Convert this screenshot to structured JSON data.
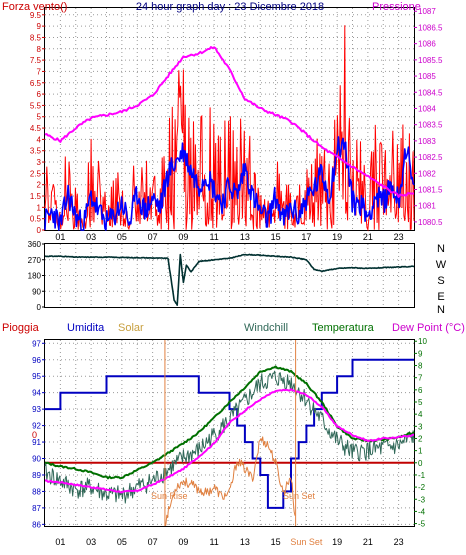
{
  "page": {
    "title": "24 hour graph day : 23 Dicembre 2018"
  },
  "colors": {
    "wind_gust": "#ff0000",
    "wind_avg": "#0000ff",
    "pressure": "#ff00ff",
    "direction": "#003030",
    "humidity": "#0000c0",
    "windchill": "#306858",
    "temperature": "#007000",
    "dewpoint": "#ff00ff",
    "rain": "#c00000",
    "solar": "#e08040",
    "axis_left": "#cc0000",
    "axis_right": "#cc00cc",
    "grid": "#9a9a9a"
  },
  "chart_data": [
    {
      "type": "line",
      "name": "wind-pressure",
      "left_label": "Forza vento()",
      "right_label": "Pressione",
      "y_ticks": [
        "0",
        "0.5",
        "1",
        "1.5",
        "2",
        "2.5",
        "3",
        "3.5",
        "4",
        "4.5",
        "5",
        "5.5",
        "6",
        "6.5",
        "7",
        "7.5",
        "8",
        "8.5",
        "9",
        "9.5"
      ],
      "y2_ticks": [
        "1080.5",
        "1081",
        "1081.5",
        "1082",
        "1082.5",
        "1083",
        "1083.5",
        "1084",
        "1084.5",
        "1085",
        "1085.5",
        "1086",
        "1086.5",
        "1087"
      ],
      "ylim": [
        0,
        9.8
      ],
      "y2lim": [
        1080.25,
        1087.1
      ],
      "x_ticks": [
        "01",
        "03",
        "05",
        "07",
        "09",
        "11",
        "13",
        "15",
        "17",
        "19",
        "21",
        "23"
      ],
      "series": [
        {
          "name": "gust",
          "x": [
            0,
            0.5,
            1,
            1.5,
            2,
            2.5,
            3,
            3.5,
            4,
            4.5,
            5,
            5.5,
            6,
            6.5,
            7,
            7.5,
            8,
            8.5,
            9,
            9.5,
            10,
            10.5,
            11,
            11.5,
            12,
            12.5,
            13,
            13.5,
            14,
            14.5,
            15,
            15.5,
            16,
            16.5,
            17,
            17.5,
            18,
            18.5,
            19,
            19.5,
            20,
            20.5,
            21,
            21.5,
            22,
            22.5,
            23,
            23.5,
            24
          ],
          "values": [
            3.6,
            2.4,
            1.2,
            4.8,
            2.0,
            1.0,
            5.2,
            3.0,
            1.5,
            2.5,
            3.6,
            1.2,
            4.5,
            3.0,
            4.0,
            2.5,
            5.5,
            7.0,
            8.0,
            6.0,
            5.0,
            6.5,
            5.5,
            4.5,
            6.0,
            5.0,
            5.5,
            3.5,
            2.5,
            1.8,
            4.0,
            1.5,
            3.0,
            2.0,
            4.0,
            5.0,
            5.5,
            3.0,
            6.5,
            9.3,
            4.0,
            4.5,
            2.5,
            5.0,
            3.5,
            5.5,
            4.0,
            5.5,
            3.5
          ]
        },
        {
          "name": "average",
          "x": [
            0,
            0.5,
            1,
            1.5,
            2,
            2.5,
            3,
            3.5,
            4,
            4.5,
            5,
            5.5,
            6,
            6.5,
            7,
            7.5,
            8,
            8.5,
            9,
            9.5,
            10,
            10.5,
            11,
            11.5,
            12,
            12.5,
            13,
            13.5,
            14,
            14.5,
            15,
            15.5,
            16,
            16.5,
            17,
            17.5,
            18,
            18.5,
            19,
            19.5,
            20,
            20.5,
            21,
            21.5,
            22,
            22.5,
            23,
            23.5,
            24
          ],
          "values": [
            0.4,
            0.8,
            0.2,
            1.6,
            0.6,
            0.2,
            1.5,
            0.8,
            0.3,
            0.6,
            1.2,
            0.3,
            1.6,
            0.8,
            1.4,
            1.0,
            2.5,
            3.0,
            3.5,
            2.6,
            2.0,
            2.5,
            1.8,
            1.2,
            2.0,
            1.5,
            2.8,
            1.5,
            0.8,
            0.4,
            1.5,
            0.4,
            1.0,
            0.6,
            1.4,
            1.8,
            2.5,
            1.5,
            3.6,
            3.8,
            1.2,
            1.2,
            0.6,
            1.5,
            1.2,
            2.0,
            1.3,
            3.8,
            1.5
          ]
        },
        {
          "name": "pressure",
          "x": [
            0,
            1,
            2,
            3,
            4,
            5,
            6,
            7,
            8,
            9,
            10,
            11,
            12,
            13,
            14,
            15,
            16,
            17,
            18,
            19,
            20,
            21,
            22,
            23,
            24
          ],
          "values": [
            1083.2,
            1083.0,
            1083.4,
            1083.7,
            1083.8,
            1083.9,
            1084.1,
            1084.4,
            1085.0,
            1085.6,
            1085.7,
            1085.9,
            1085.2,
            1084.3,
            1084.0,
            1083.8,
            1083.6,
            1083.2,
            1082.8,
            1082.5,
            1082.2,
            1081.9,
            1081.6,
            1081.3,
            1081.4
          ]
        }
      ]
    },
    {
      "type": "line",
      "name": "wind-direction",
      "y_ticks": [
        "0",
        "90",
        "180",
        "270",
        "360"
      ],
      "compass_labels": [
        "N",
        "W",
        "S",
        "E",
        "N"
      ],
      "ylim": [
        0,
        360
      ],
      "x": [
        0,
        1,
        2,
        3,
        4,
        5,
        6,
        7,
        8,
        8.4,
        8.6,
        8.8,
        9,
        9.2,
        9.5,
        10,
        11,
        12,
        13,
        14,
        15,
        16,
        17,
        17.5,
        18,
        19,
        20,
        21,
        22,
        23,
        24
      ],
      "values": [
        290,
        290,
        285,
        285,
        285,
        283,
        282,
        280,
        278,
        40,
        10,
        300,
        140,
        240,
        200,
        260,
        270,
        278,
        300,
        296,
        290,
        285,
        270,
        215,
        205,
        220,
        225,
        220,
        225,
        228,
        232
      ]
    },
    {
      "type": "line",
      "name": "temperature-humidity",
      "labels": {
        "pioggia": "Pioggia",
        "umidita": "Umidita",
        "solar": "Solar",
        "windchill": "Windchill",
        "temperatura": "Temperatura",
        "dewpoint": "Dew Point (°C)"
      },
      "y_ticks": [
        "86",
        "87",
        "88",
        "89",
        "90",
        "91",
        "92",
        "93",
        "94",
        "95",
        "96",
        "97"
      ],
      "y2_ticks": [
        "-5",
        "-4",
        "-3",
        "-2",
        "-1",
        "0",
        "1",
        "2",
        "3",
        "4",
        "5",
        "6",
        "7",
        "8",
        "9",
        "10"
      ],
      "ylim": [
        85.9,
        97.2
      ],
      "y2lim": [
        -5.2,
        10.1
      ],
      "rain_zero_label": "0",
      "x_ticks": [
        "01",
        "03",
        "05",
        "07",
        "09",
        "11",
        "13",
        "15",
        "Sun Set",
        "19",
        "21",
        "23"
      ],
      "annotations": {
        "sunrise": "Sun Rise",
        "sunset": "Sun Set"
      },
      "sunrise_hour": 7.8,
      "sunset_hour": 16.3,
      "series": [
        {
          "name": "humidity",
          "x": [
            0,
            0.5,
            1,
            1.5,
            2,
            2.5,
            3,
            3.5,
            4,
            4.5,
            5,
            5.5,
            6,
            6.5,
            7,
            7.5,
            8,
            8.5,
            9,
            9.5,
            10,
            10.5,
            11,
            11.5,
            12,
            12.5,
            13,
            13.5,
            14,
            14.5,
            15,
            15.5,
            16,
            16.5,
            17,
            17.5,
            18,
            18.5,
            19,
            19.5,
            20,
            20.5,
            21,
            21.5,
            22,
            22.5,
            23,
            23.5,
            24
          ],
          "values": [
            93,
            93,
            94,
            94,
            94,
            94,
            94,
            94,
            95,
            95,
            95,
            95,
            95,
            95,
            95,
            95,
            95,
            95,
            95,
            95,
            94,
            94,
            94,
            94,
            93,
            92,
            91,
            90,
            89,
            87,
            87,
            88,
            90,
            91,
            92,
            93,
            94,
            94,
            95,
            95,
            96,
            96,
            96,
            96,
            96,
            96,
            96,
            96,
            96
          ]
        },
        {
          "name": "temperature",
          "x": [
            0,
            1,
            2,
            3,
            4,
            5,
            6,
            7,
            8,
            9,
            10,
            11,
            12,
            13,
            14,
            15,
            16,
            17,
            18,
            19,
            20,
            21,
            22,
            23,
            24
          ],
          "values": [
            0.0,
            -0.3,
            -0.5,
            -0.8,
            -1.2,
            -1.2,
            -0.6,
            0.0,
            0.8,
            1.6,
            2.5,
            3.7,
            5.0,
            6.2,
            7.5,
            7.9,
            7.5,
            6.5,
            5.0,
            3.0,
            2.0,
            1.8,
            1.9,
            2.1,
            2.5
          ]
        },
        {
          "name": "dewpoint",
          "x": [
            0,
            1,
            2,
            3,
            4,
            5,
            6,
            7,
            8,
            9,
            10,
            11,
            12,
            13,
            14,
            15,
            16,
            17,
            18,
            19,
            20,
            21,
            22,
            23,
            24
          ],
          "values": [
            -1.5,
            -1.6,
            -1.8,
            -2.0,
            -2.2,
            -2.4,
            -2.3,
            -1.8,
            -1.2,
            -0.5,
            0.5,
            1.6,
            3.3,
            4.3,
            5.2,
            5.9,
            6.0,
            5.6,
            4.6,
            3.0,
            2.3,
            1.8,
            2.0,
            2.1,
            2.3
          ]
        },
        {
          "name": "windchill",
          "x": [
            0,
            1,
            2,
            3,
            4,
            5,
            6,
            7,
            8,
            9,
            10,
            11,
            12,
            13,
            14,
            15,
            16,
            17,
            18,
            19,
            20,
            21,
            22,
            23,
            24
          ],
          "values": [
            -0.8,
            -1.5,
            -2.2,
            -2.0,
            -2.6,
            -2.7,
            -2.0,
            -1.5,
            -0.6,
            0.4,
            1.0,
            2.3,
            3.5,
            5.0,
            6.5,
            7.0,
            6.6,
            5.2,
            3.5,
            1.8,
            0.8,
            1.0,
            1.2,
            1.4,
            2.2
          ]
        },
        {
          "name": "solar",
          "x": [
            7.8,
            8.5,
            9,
            9.5,
            10,
            10.5,
            11,
            11.5,
            12,
            12.5,
            13,
            13.5,
            14,
            14.5,
            15,
            15.5,
            16,
            16.3
          ],
          "values": [
            -5.0,
            -2.0,
            -1.5,
            -1.8,
            -2.2,
            -2.5,
            -2.0,
            -2.8,
            -2.5,
            0.2,
            -0.5,
            -1.3,
            2.0,
            1.5,
            0.0,
            -2.5,
            -1.0,
            -5.0
          ]
        }
      ]
    }
  ]
}
